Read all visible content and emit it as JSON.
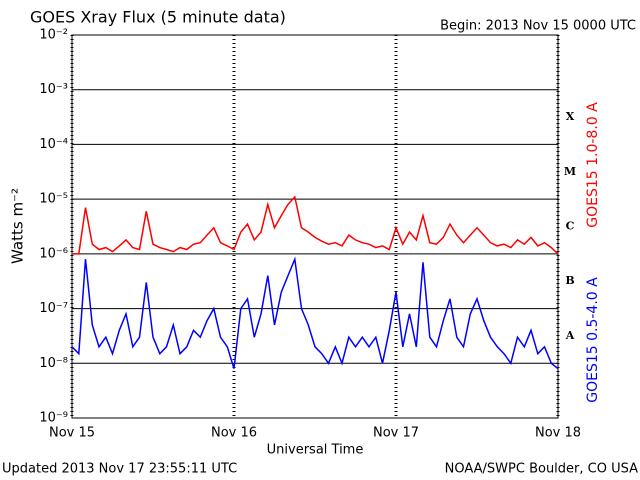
{
  "chart_data": {
    "type": "line",
    "title": "GOES Xray Flux (5 minute data)",
    "subtitle": "Begin:  2013 Nov 15 0000 UTC",
    "x_label": "Universal Time",
    "y_label": "Watts m⁻²",
    "footer_left": "Updated 2013 Nov 17 23:55:11 UTC",
    "footer_right": "NOAA/SWPC Boulder, CO USA",
    "y_log": true,
    "grid": true,
    "xlim": [
      0,
      72
    ],
    "xticks": [
      {
        "value": 0,
        "label": "Nov 15"
      },
      {
        "value": 24,
        "label": "Nov 16"
      },
      {
        "value": 48,
        "label": "Nov 17"
      },
      {
        "value": 72,
        "label": "Nov 18"
      }
    ],
    "ylim": [
      1e-09,
      0.01
    ],
    "yticks": [
      {
        "value": 1e-09,
        "label": "10⁻⁹"
      },
      {
        "value": 1e-08,
        "label": "10⁻⁸"
      },
      {
        "value": 1e-07,
        "label": "10⁻⁷"
      },
      {
        "value": 1e-06,
        "label": "10⁻⁶"
      },
      {
        "value": 1e-05,
        "label": "10⁻⁵"
      },
      {
        "value": 0.0001,
        "label": "10⁻⁴"
      },
      {
        "value": 0.001,
        "label": "10⁻³"
      },
      {
        "value": 0.01,
        "label": "10⁻²"
      }
    ],
    "class_labels": [
      {
        "value": 1e-08,
        "label": "A"
      },
      {
        "value": 1e-07,
        "label": "B"
      },
      {
        "value": 1e-06,
        "label": "C"
      },
      {
        "value": 1e-05,
        "label": "M"
      },
      {
        "value": 0.0001,
        "label": "X"
      }
    ],
    "x": [
      0,
      1,
      2,
      3,
      4,
      5,
      6,
      7,
      8,
      9,
      10,
      11,
      12,
      13,
      14,
      15,
      16,
      17,
      18,
      19,
      20,
      21,
      22,
      23,
      24,
      25,
      26,
      27,
      28,
      29,
      30,
      31,
      32,
      33,
      34,
      35,
      36,
      37,
      38,
      39,
      40,
      41,
      42,
      43,
      44,
      45,
      46,
      47,
      48,
      49,
      50,
      51,
      52,
      53,
      54,
      55,
      56,
      57,
      58,
      59,
      60,
      61,
      62,
      63,
      64,
      65,
      66,
      67,
      68,
      69,
      70,
      71,
      72
    ],
    "series": [
      {
        "name": "GOES15 1.0-8.0 A",
        "color": "#ff0000",
        "values": [
          1e-06,
          1e-06,
          7e-06,
          1.5e-06,
          1.2e-06,
          1.3e-06,
          1.1e-06,
          1.4e-06,
          1.8e-06,
          1.3e-06,
          1.2e-06,
          6e-06,
          1.5e-06,
          1.3e-06,
          1.2e-06,
          1.1e-06,
          1.3e-06,
          1.2e-06,
          1.5e-06,
          1.6e-06,
          2.2e-06,
          3e-06,
          1.6e-06,
          1.4e-06,
          1.2e-06,
          2.5e-06,
          3.5e-06,
          1.8e-06,
          2.5e-06,
          8e-06,
          3e-06,
          5e-06,
          8e-06,
          1.1e-05,
          3e-06,
          2.5e-06,
          2e-06,
          1.7e-06,
          1.5e-06,
          1.6e-06,
          1.4e-06,
          2.2e-06,
          1.8e-06,
          1.6e-06,
          1.5e-06,
          1.3e-06,
          1.4e-06,
          1.2e-06,
          3e-06,
          1.5e-06,
          2.5e-06,
          1.8e-06,
          5e-06,
          1.6e-06,
          1.5e-06,
          2e-06,
          3.5e-06,
          2.2e-06,
          1.6e-06,
          2.2e-06,
          3e-06,
          2.2e-06,
          1.6e-06,
          1.4e-06,
          1.5e-06,
          1.3e-06,
          1.8e-06,
          1.5e-06,
          2e-06,
          1.4e-06,
          1.6e-06,
          1.3e-06,
          1e-06
        ]
      },
      {
        "name": "GOES15 0.5-4.0 A",
        "color": "#0000ff",
        "values": [
          2e-08,
          1.5e-08,
          8e-07,
          5e-08,
          2e-08,
          3e-08,
          1.5e-08,
          4e-08,
          8e-08,
          2e-08,
          3e-08,
          3e-07,
          3e-08,
          1.5e-08,
          2e-08,
          5e-08,
          1.5e-08,
          2e-08,
          4e-08,
          3e-08,
          6e-08,
          1e-07,
          3e-08,
          2e-08,
          8e-09,
          1e-07,
          1.5e-07,
          3e-08,
          8e-08,
          4e-07,
          5e-08,
          2e-07,
          4e-07,
          8e-07,
          1e-07,
          5e-08,
          2e-08,
          1.5e-08,
          1e-08,
          2e-08,
          1e-08,
          3e-08,
          2e-08,
          3e-08,
          2e-08,
          3e-08,
          1e-08,
          4e-08,
          2e-07,
          2e-08,
          8e-08,
          2e-08,
          7e-07,
          3e-08,
          2e-08,
          6e-08,
          1.5e-07,
          3e-08,
          2e-08,
          8e-08,
          1.5e-07,
          6e-08,
          3e-08,
          2e-08,
          1.5e-08,
          1e-08,
          3e-08,
          2e-08,
          4e-08,
          1.5e-08,
          2e-08,
          1e-08,
          8e-09
        ]
      }
    ]
  }
}
